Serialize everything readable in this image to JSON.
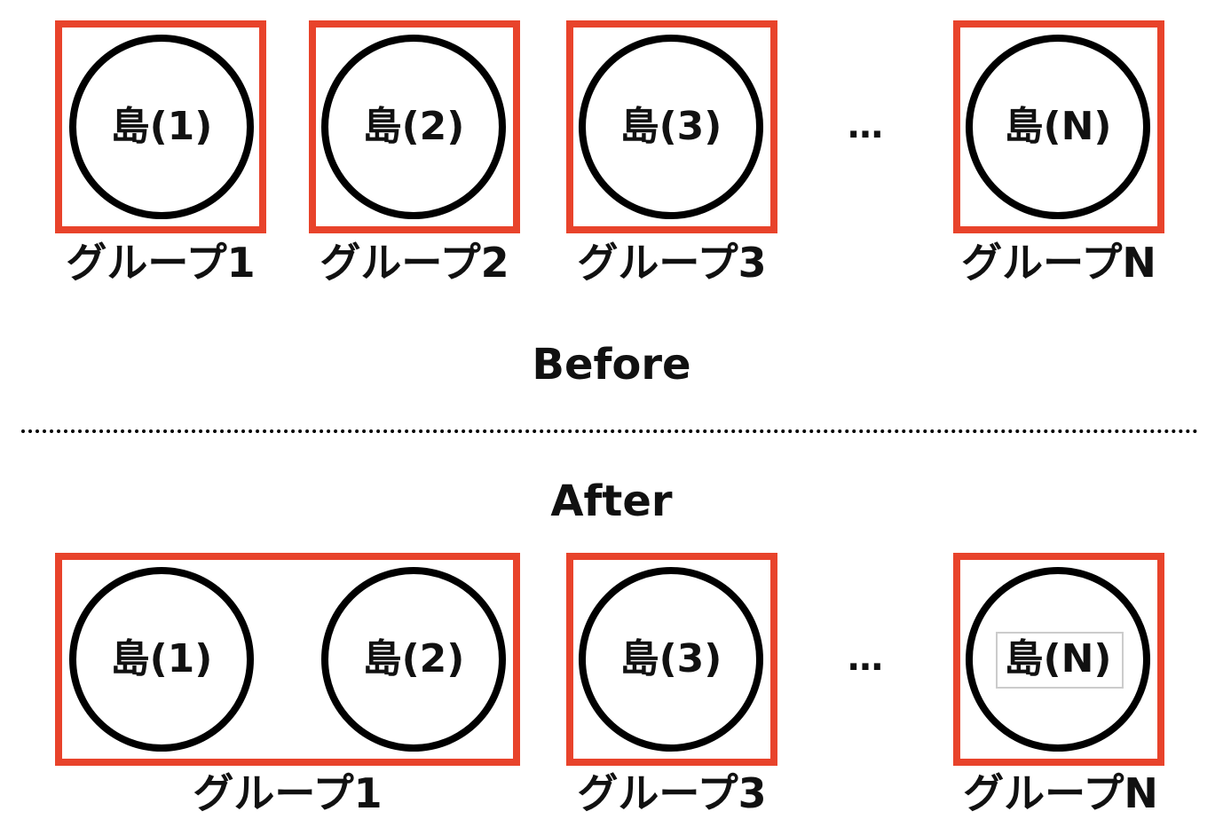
{
  "before": {
    "title": "Before",
    "islands": [
      "島(1)",
      "島(2)",
      "島(3)",
      "島(N)"
    ],
    "groups": [
      "グループ1",
      "グループ2",
      "グループ3",
      "グループN"
    ],
    "ellipsis": "…"
  },
  "after": {
    "title": "After",
    "islands": [
      "島(1)",
      "島(2)",
      "島(3)",
      "島(N)"
    ],
    "groups": [
      "グループ1",
      "グループ3",
      "グループN"
    ],
    "ellipsis": "…"
  },
  "colors": {
    "group_border": "#e8432b",
    "island_border": "#000000"
  }
}
